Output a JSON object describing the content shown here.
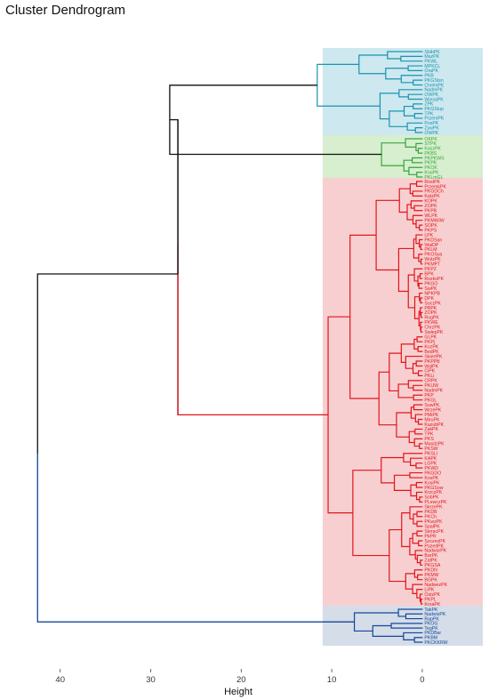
{
  "chart_data": {
    "type": "dendrogram",
    "title": "Cluster Dendrogram",
    "xlabel": "Height",
    "xlim": [
      44,
      -6
    ],
    "x_ticks": [
      40,
      30,
      20,
      10,
      0
    ],
    "grid": false,
    "clusters": [
      {
        "color": "#1a93b0",
        "band": "#cde8ef",
        "labels": [
          "SbibPK",
          "MazPK",
          "PKWL",
          "MPKCL",
          "OraPK",
          "PKB",
          "PKGStsn",
          "ChelmPK",
          "NadmPK",
          "OWPK",
          "WiesaPK",
          "ZPK",
          "PKGStup",
          "TPK",
          "PrzemPK",
          "PosPK",
          "ZywPK",
          "OWPK"
        ]
      },
      {
        "color": "#36a83a",
        "band": "#d7eecf",
        "labels": [
          "OKPK",
          "STPK",
          "KaszPK",
          "PKBS",
          "PKPKWS",
          "PKPK",
          "PKOK",
          "KraiPK",
          "PKLmGL"
        ]
      },
      {
        "color": "#e0161c",
        "band": "#f8cfd0",
        "labels": [
          "RostPK",
          "PrzemkPK",
          "PKGDCh",
          "KatzPK",
          "KOPK",
          "ZOPK",
          "PKPB",
          "WLPK",
          "PKMWiW",
          "SOPK",
          "PKPS",
          "LPK",
          "PKDSan",
          "WaiDP",
          "PKLM",
          "PKOSya",
          "WolzPK",
          "PKMPT",
          "PKPZ",
          "BPK",
          "RozkoPK",
          "PKGO",
          "SwPK",
          "NPKPB",
          "DPK",
          "SuczPK",
          "PBPK",
          "ZOPK",
          "RogPK",
          "PKWE",
          "ChrzPK",
          "SwiepPK",
          "GLPK",
          "PKPj",
          "KozPK",
          "BedPK",
          "SkiertPK",
          "PKPPB",
          "WalPK",
          "CiPK",
          "PKLi",
          "CRPK",
          "PKUW",
          "NadmPK",
          "PKP",
          "PKGL",
          "SuwPK",
          "WrzePK",
          "PMiPK",
          "MiruPK",
          "KazubPK",
          "ZakPK",
          "TPK",
          "PKS",
          "MasdzPK",
          "PKSW",
          "PKSLI",
          "KAPK",
          "LGPK",
          "PKWD",
          "PKGDO",
          "KosPK",
          "KosiPK",
          "PKGSow",
          "KrzczPK",
          "SobPK",
          "PLewczPK",
          "SkrzePK",
          "PKDB",
          "PKCh",
          "PKwzPK",
          "SpalPK",
          "SieracPK",
          "PkPR",
          "SzczesPK",
          "PozedPK",
          "NadwarPK",
          "BarPK",
          "ZatPK",
          "PKGSA",
          "PKDN",
          "PKMW",
          "BGPK",
          "NadwezPK",
          "LiPK",
          "OstzPK",
          "PKPL",
          "KroaPK"
        ]
      },
      {
        "color": "#15479a",
        "band": "#d4dde8",
        "labels": [
          "TakPK",
          "NadwisPK",
          "RapPK",
          "PKOG",
          "TegPK",
          "PKDBar",
          "PKBM",
          "PKCKKRW"
        ]
      }
    ],
    "merges": [
      {
        "clusters": [
          "cyan",
          "green"
        ],
        "height": 27.9
      },
      {
        "clusters": [
          "cyan+green",
          "red"
        ],
        "height": 27.0
      },
      {
        "clusters": [
          "cyan+green+red",
          "blue"
        ],
        "height": 42.5
      }
    ],
    "cluster_heights": {
      "cyan": 11.6,
      "green": 4.5,
      "red": 10.4,
      "blue": 7.5
    }
  }
}
